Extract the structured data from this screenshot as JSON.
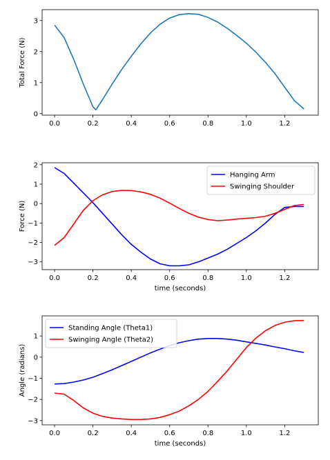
{
  "chart_data": [
    {
      "type": "line",
      "xlabel": "",
      "ylabel": "Total Force (N)",
      "xlim": [
        -0.065,
        1.375
      ],
      "ylim": [
        -0.05,
        3.35
      ],
      "xticks": [
        0.0,
        0.2,
        0.4,
        0.6,
        0.8,
        1.0,
        1.2
      ],
      "xtick_labels": [
        "0.0",
        "0.2",
        "0.4",
        "0.6",
        "0.8",
        "1.0",
        "1.2"
      ],
      "yticks": [
        0,
        1,
        2,
        3
      ],
      "ytick_labels": [
        "0",
        "1",
        "2",
        "3"
      ],
      "legend": null,
      "grid": false,
      "series": [
        {
          "color": "#1f77b4",
          "x": [
            0.0,
            0.05,
            0.1,
            0.15,
            0.2,
            0.215,
            0.25,
            0.3,
            0.35,
            0.4,
            0.45,
            0.5,
            0.55,
            0.6,
            0.65,
            0.7,
            0.75,
            0.8,
            0.85,
            0.9,
            0.95,
            1.0,
            1.05,
            1.1,
            1.15,
            1.2,
            1.25,
            1.3
          ],
          "y": [
            2.85,
            2.45,
            1.75,
            0.95,
            0.22,
            0.12,
            0.45,
            0.95,
            1.42,
            1.85,
            2.25,
            2.6,
            2.88,
            3.08,
            3.19,
            3.22,
            3.2,
            3.1,
            2.95,
            2.75,
            2.52,
            2.27,
            1.98,
            1.65,
            1.28,
            0.85,
            0.42,
            0.15
          ]
        }
      ]
    },
    {
      "type": "line",
      "xlabel": "time (seconds)",
      "ylabel": "Force (N)",
      "xlim": [
        -0.065,
        1.375
      ],
      "ylim": [
        -3.4,
        2.1
      ],
      "xticks": [
        0.0,
        0.2,
        0.4,
        0.6,
        0.8,
        1.0,
        1.2
      ],
      "xtick_labels": [
        "0.0",
        "0.2",
        "0.4",
        "0.6",
        "0.8",
        "1.0",
        "1.2"
      ],
      "yticks": [
        -3,
        -2,
        -1,
        0,
        1,
        2
      ],
      "ytick_labels": [
        "−3",
        "−2",
        "−1",
        "0",
        "1",
        "2"
      ],
      "legend": "top-right",
      "grid": false,
      "series": [
        {
          "name": "Hanging Arm",
          "color": "#0000ff",
          "x": [
            0.0,
            0.05,
            0.1,
            0.15,
            0.2,
            0.25,
            0.3,
            0.35,
            0.4,
            0.45,
            0.5,
            0.55,
            0.6,
            0.65,
            0.7,
            0.75,
            0.8,
            0.85,
            0.9,
            0.95,
            1.0,
            1.05,
            1.1,
            1.15,
            1.2,
            1.25,
            1.3
          ],
          "y": [
            1.85,
            1.55,
            1.05,
            0.55,
            0.05,
            -0.5,
            -1.05,
            -1.6,
            -2.1,
            -2.5,
            -2.85,
            -3.1,
            -3.2,
            -3.2,
            -3.15,
            -3.0,
            -2.8,
            -2.6,
            -2.35,
            -2.05,
            -1.75,
            -1.4,
            -1.0,
            -0.55,
            -0.2,
            -0.15,
            -0.15
          ]
        },
        {
          "name": "Swinging Shoulder",
          "color": "#ff0000",
          "x": [
            0.0,
            0.05,
            0.1,
            0.15,
            0.2,
            0.25,
            0.3,
            0.35,
            0.4,
            0.45,
            0.5,
            0.55,
            0.6,
            0.65,
            0.7,
            0.75,
            0.8,
            0.85,
            0.9,
            0.95,
            1.0,
            1.05,
            1.1,
            1.15,
            1.2,
            1.25,
            1.3
          ],
          "y": [
            -2.15,
            -1.75,
            -1.05,
            -0.35,
            0.15,
            0.45,
            0.62,
            0.68,
            0.67,
            0.6,
            0.48,
            0.28,
            0.02,
            -0.25,
            -0.5,
            -0.7,
            -0.82,
            -0.88,
            -0.85,
            -0.8,
            -0.76,
            -0.72,
            -0.65,
            -0.5,
            -0.3,
            -0.1,
            -0.05
          ]
        }
      ]
    },
    {
      "type": "line",
      "xlabel": "time (seconds)",
      "ylabel": "Angle (radians)",
      "xlim": [
        -0.065,
        1.375
      ],
      "ylim": [
        -3.2,
        1.95
      ],
      "xticks": [
        0.0,
        0.2,
        0.4,
        0.6,
        0.8,
        1.0,
        1.2
      ],
      "xtick_labels": [
        "0.0",
        "0.2",
        "0.4",
        "0.6",
        "0.8",
        "1.0",
        "1.2"
      ],
      "yticks": [
        -3,
        -2,
        -1,
        0,
        1
      ],
      "ytick_labels": [
        "−3",
        "−2",
        "−1",
        "0",
        "1"
      ],
      "legend": "top-left",
      "grid": false,
      "series": [
        {
          "name": "Standing Angle (Theta1)",
          "color": "#0000ff",
          "x": [
            0.0,
            0.05,
            0.1,
            0.15,
            0.2,
            0.25,
            0.3,
            0.35,
            0.4,
            0.45,
            0.5,
            0.55,
            0.6,
            0.65,
            0.7,
            0.75,
            0.8,
            0.85,
            0.9,
            0.95,
            1.0,
            1.05,
            1.1,
            1.15,
            1.2,
            1.25,
            1.3
          ],
          "y": [
            -1.27,
            -1.25,
            -1.18,
            -1.08,
            -0.95,
            -0.78,
            -0.6,
            -0.4,
            -0.2,
            0.0,
            0.2,
            0.38,
            0.55,
            0.68,
            0.78,
            0.85,
            0.88,
            0.88,
            0.85,
            0.8,
            0.72,
            0.65,
            0.57,
            0.48,
            0.4,
            0.3,
            0.22
          ]
        },
        {
          "name": "Swinging Angle (Theta2)",
          "color": "#ff0000",
          "x": [
            0.0,
            0.05,
            0.1,
            0.15,
            0.2,
            0.25,
            0.3,
            0.35,
            0.4,
            0.45,
            0.5,
            0.55,
            0.6,
            0.65,
            0.7,
            0.75,
            0.8,
            0.85,
            0.9,
            0.95,
            1.0,
            1.05,
            1.1,
            1.15,
            1.2,
            1.25,
            1.3
          ],
          "y": [
            -1.7,
            -1.75,
            -2.05,
            -2.4,
            -2.65,
            -2.8,
            -2.88,
            -2.92,
            -2.95,
            -2.95,
            -2.92,
            -2.85,
            -2.72,
            -2.55,
            -2.3,
            -2.0,
            -1.62,
            -1.15,
            -0.65,
            -0.1,
            0.45,
            0.9,
            1.25,
            1.5,
            1.65,
            1.72,
            1.73
          ]
        }
      ]
    }
  ]
}
